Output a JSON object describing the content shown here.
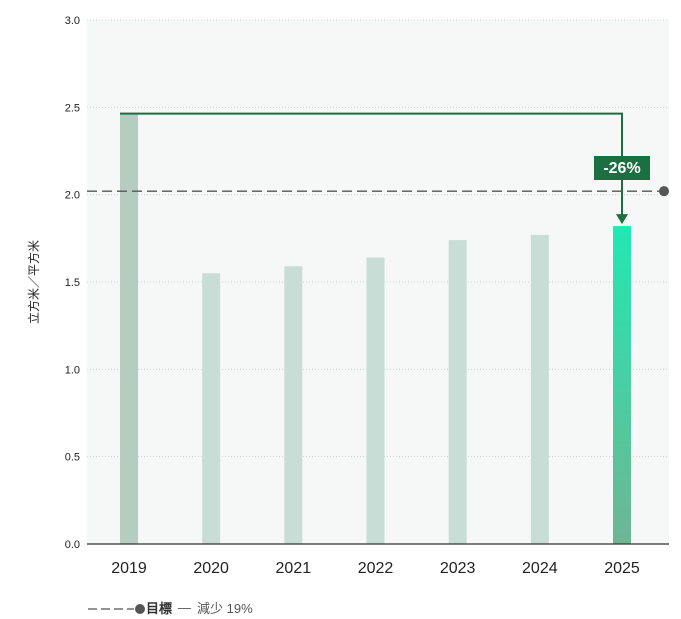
{
  "chart_data": {
    "type": "bar",
    "ylabel": "立方米／平方米",
    "categories": [
      "2019",
      "2020",
      "2021",
      "2022",
      "2023",
      "2024",
      "2025"
    ],
    "values": [
      2.47,
      1.55,
      1.59,
      1.64,
      1.74,
      1.77,
      1.82
    ],
    "ylim": [
      0,
      3.0
    ],
    "yticks": [
      "0.0",
      "0.5",
      "1.0",
      "1.5",
      "2.0",
      "2.5",
      "3.0"
    ],
    "target_value": 2.02,
    "annotation": {
      "text": "-26%",
      "from_category": "2019",
      "to_category": "2025"
    },
    "colors": {
      "bar_2019": "#b5ccc3",
      "bar_default": "#c9ddd7",
      "bar_2025_top": "#22e8b2",
      "bar_2025_bottom": "#6fb594",
      "annotation": "#1a7040",
      "target_line": "#555555",
      "plot_bg": "#f5f8f7"
    },
    "grid": true
  },
  "legend": {
    "label": "目標",
    "separator": "—",
    "description": "減少 19%"
  }
}
